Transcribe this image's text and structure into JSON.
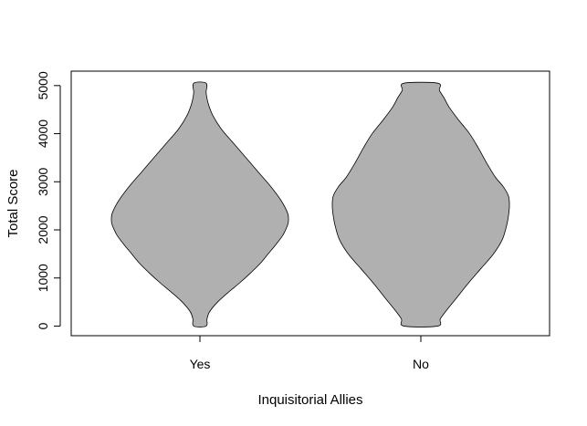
{
  "chart_data": {
    "type": "violin",
    "title": "",
    "xlabel": "Inquisitorial Allies",
    "ylabel": "Total Score",
    "categories": [
      "Yes",
      "No"
    ],
    "ylim": [
      -200,
      5300
    ],
    "yticks": [
      0,
      1000,
      2000,
      3000,
      4000,
      5000
    ],
    "fill_color": "#b0b0b0",
    "grid": false,
    "series": [
      {
        "category": "Yes",
        "min": 0,
        "max": 5050,
        "density_profile": [
          [
            0,
            0.07
          ],
          [
            150,
            0.08
          ],
          [
            300,
            0.11
          ],
          [
            500,
            0.2
          ],
          [
            700,
            0.32
          ],
          [
            900,
            0.45
          ],
          [
            1100,
            0.57
          ],
          [
            1300,
            0.68
          ],
          [
            1500,
            0.77
          ],
          [
            1700,
            0.86
          ],
          [
            1900,
            0.94
          ],
          [
            2100,
            0.99
          ],
          [
            2200,
            1.0
          ],
          [
            2350,
            0.99
          ],
          [
            2600,
            0.92
          ],
          [
            2900,
            0.8
          ],
          [
            3200,
            0.66
          ],
          [
            3500,
            0.52
          ],
          [
            3800,
            0.38
          ],
          [
            4100,
            0.24
          ],
          [
            4400,
            0.14
          ],
          [
            4650,
            0.09
          ],
          [
            4850,
            0.07
          ],
          [
            5050,
            0.07
          ]
        ]
      },
      {
        "category": "No",
        "min": 0,
        "max": 5050,
        "density_profile": [
          [
            0,
            0.19
          ],
          [
            150,
            0.22
          ],
          [
            350,
            0.3
          ],
          [
            600,
            0.41
          ],
          [
            900,
            0.54
          ],
          [
            1200,
            0.68
          ],
          [
            1500,
            0.82
          ],
          [
            1800,
            0.92
          ],
          [
            2100,
            0.97
          ],
          [
            2300,
            0.99
          ],
          [
            2500,
            1.0
          ],
          [
            2700,
            0.99
          ],
          [
            2900,
            0.93
          ],
          [
            3100,
            0.84
          ],
          [
            3400,
            0.74
          ],
          [
            3700,
            0.65
          ],
          [
            4000,
            0.55
          ],
          [
            4300,
            0.42
          ],
          [
            4550,
            0.32
          ],
          [
            4750,
            0.26
          ],
          [
            4900,
            0.21
          ],
          [
            5050,
            0.19
          ]
        ]
      }
    ]
  }
}
